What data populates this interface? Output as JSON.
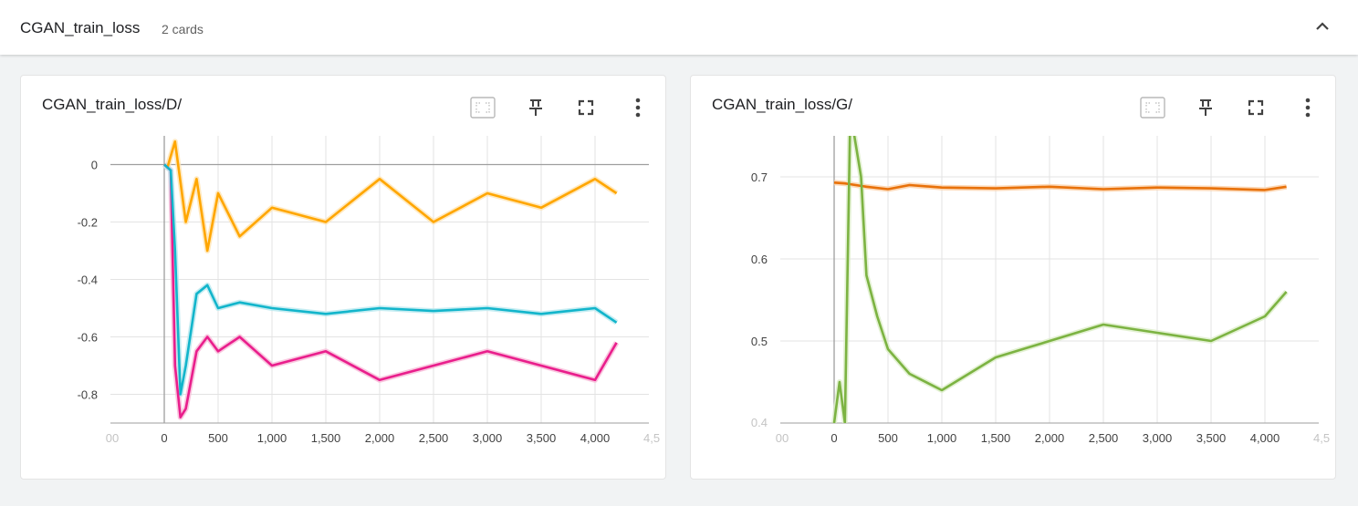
{
  "group": {
    "title": "CGAN_train_loss",
    "count": "2 cards",
    "collapse_icon": "chevron-up-icon"
  },
  "cards": [
    {
      "title": "CGAN_train_loss/D/",
      "toolbar": [
        "fit-domain-icon",
        "pin-icon",
        "fullscreen-icon",
        "more-vert-icon"
      ],
      "chart_data": {
        "type": "line",
        "x_ticks": [
          "0",
          "500",
          "1,000",
          "1,500",
          "2,000",
          "2,500",
          "3,000",
          "3,500",
          "4,000"
        ],
        "x_ticks_faded": [
          "00",
          "4,5"
        ],
        "y_ticks": [
          "0",
          "-0.2",
          "-0.4",
          "-0.6",
          "-0.8"
        ],
        "xlim": [
          -500,
          4500
        ],
        "ylim": [
          -0.9,
          0.1
        ],
        "grid": true,
        "series": [
          {
            "color": "#ffa600",
            "raw_color": "#ffe3b0",
            "x": [
              0,
              30,
              60,
              100,
              200,
              300,
              400,
              500,
              700,
              1000,
              1500,
              2000,
              2500,
              3000,
              3500,
              4000,
              4200
            ],
            "values": [
              0,
              -0.01,
              0.03,
              0.08,
              -0.2,
              -0.05,
              -0.3,
              -0.1,
              -0.25,
              -0.15,
              -0.2,
              -0.05,
              -0.2,
              -0.1,
              -0.15,
              -0.05,
              -0.1
            ]
          },
          {
            "color": "#e91e8c",
            "raw_color": "#f7b9d7",
            "x": [
              0,
              30,
              60,
              100,
              150,
              200,
              300,
              400,
              500,
              700,
              1000,
              1500,
              2000,
              2500,
              3000,
              3500,
              4000,
              4200
            ],
            "values": [
              0,
              -0.01,
              -0.02,
              -0.7,
              -0.88,
              -0.85,
              -0.65,
              -0.6,
              -0.65,
              -0.6,
              -0.7,
              -0.65,
              -0.75,
              -0.7,
              -0.65,
              -0.7,
              -0.75,
              -0.62
            ]
          },
          {
            "color": "#12b5cb",
            "raw_color": "#b9e9ef",
            "x": [
              0,
              30,
              60,
              100,
              150,
              200,
              300,
              400,
              500,
              700,
              1000,
              1500,
              2000,
              2500,
              3000,
              3500,
              4000,
              4200
            ],
            "values": [
              0,
              -0.01,
              -0.02,
              -0.3,
              -0.8,
              -0.7,
              -0.45,
              -0.42,
              -0.5,
              -0.48,
              -0.5,
              -0.52,
              -0.5,
              -0.51,
              -0.5,
              -0.52,
              -0.5,
              -0.55
            ]
          }
        ]
      }
    },
    {
      "title": "CGAN_train_loss/G/",
      "toolbar": [
        "fit-domain-icon",
        "pin-icon",
        "fullscreen-icon",
        "more-vert-icon"
      ],
      "chart_data": {
        "type": "line",
        "x_ticks": [
          "0",
          "500",
          "1,000",
          "1,500",
          "2,000",
          "2,500",
          "3,000",
          "3,500",
          "4,000"
        ],
        "x_ticks_faded": [
          "00",
          "4,5",
          "0.4"
        ],
        "y_ticks": [
          "0.7",
          "0.6",
          "0.5"
        ],
        "xlim": [
          -500,
          4500
        ],
        "ylim": [
          0.4,
          0.75
        ],
        "grid": true,
        "series": [
          {
            "color": "#e8710a",
            "raw_color": "#fbcfa6",
            "x": [
              0,
              100,
              200,
              300,
              500,
              700,
              1000,
              1500,
              2000,
              2500,
              3000,
              3500,
              4000,
              4200
            ],
            "values": [
              0.693,
              0.692,
              0.69,
              0.688,
              0.685,
              0.69,
              0.687,
              0.686,
              0.688,
              0.685,
              0.687,
              0.686,
              0.684,
              0.688
            ]
          },
          {
            "color": "#7cb342",
            "raw_color": "#dcedc8",
            "x": [
              0,
              50,
              100,
              150,
              200,
              250,
              300,
              400,
              500,
              700,
              1000,
              1500,
              2000,
              2500,
              3000,
              3500,
              4000,
              4200
            ],
            "values": [
              0.4,
              0.45,
              0.4,
              0.78,
              0.74,
              0.7,
              0.58,
              0.53,
              0.49,
              0.46,
              0.44,
              0.48,
              0.5,
              0.52,
              0.51,
              0.5,
              0.53,
              0.56
            ]
          }
        ]
      }
    }
  ]
}
